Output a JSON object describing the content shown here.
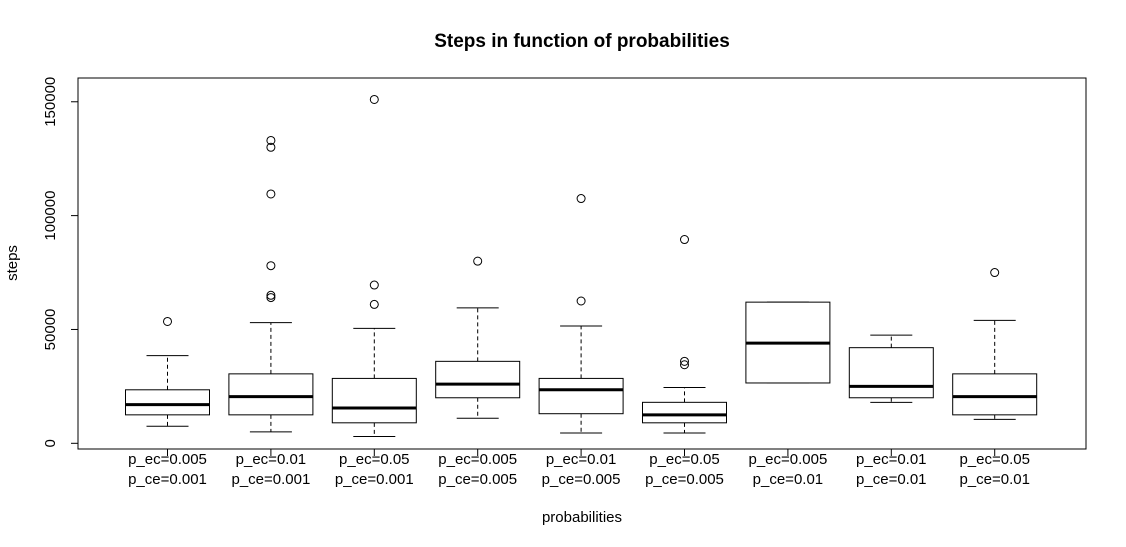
{
  "chart_data": {
    "type": "boxplot",
    "title": "Steps in function of probabilities",
    "xlabel": "probabilities",
    "ylabel": "steps",
    "ylim": [
      -2500,
      160000
    ],
    "yticks": [
      0,
      50000,
      100000,
      150000
    ],
    "ytick_labels": [
      "0",
      "50000",
      "100000",
      "150000"
    ],
    "grid": false,
    "legend": "none",
    "categories": [
      {
        "line1": "p_ec=0.005",
        "line2": "p_ce=0.001"
      },
      {
        "line1": "p_ec=0.01",
        "line2": "p_ce=0.001"
      },
      {
        "line1": "p_ec=0.05",
        "line2": "p_ce=0.001"
      },
      {
        "line1": "p_ec=0.005",
        "line2": "p_ce=0.005"
      },
      {
        "line1": "p_ec=0.01",
        "line2": "p_ce=0.005"
      },
      {
        "line1": "p_ec=0.05",
        "line2": "p_ce=0.005"
      },
      {
        "line1": "p_ec=0.005",
        "line2": "p_ce=0.01"
      },
      {
        "line1": "p_ec=0.01",
        "line2": "p_ce=0.01"
      },
      {
        "line1": "p_ec=0.05",
        "line2": "p_ce=0.01"
      }
    ],
    "boxes": [
      {
        "whisker_low": 7500,
        "q1": 12500,
        "median": 17000,
        "q3": 23500,
        "whisker_high": 38500,
        "outliers": [
          53500
        ]
      },
      {
        "whisker_low": 5000,
        "q1": 12500,
        "median": 20500,
        "q3": 30500,
        "whisker_high": 53000,
        "outliers": [
          64000,
          65000,
          78000,
          109500,
          130000,
          133000
        ]
      },
      {
        "whisker_low": 3000,
        "q1": 9000,
        "median": 15500,
        "q3": 28500,
        "whisker_high": 50500,
        "outliers": [
          61000,
          69500,
          151000
        ]
      },
      {
        "whisker_low": 11000,
        "q1": 20000,
        "median": 26000,
        "q3": 36000,
        "whisker_high": 59500,
        "outliers": [
          80000
        ]
      },
      {
        "whisker_low": 4500,
        "q1": 13000,
        "median": 23500,
        "q3": 28500,
        "whisker_high": 51500,
        "outliers": [
          62500,
          107500
        ]
      },
      {
        "whisker_low": 4500,
        "q1": 9000,
        "median": 12500,
        "q3": 18000,
        "whisker_high": 24500,
        "outliers": [
          34500,
          36000,
          89500
        ]
      },
      {
        "whisker_low": 26500,
        "q1": 26500,
        "median": 44000,
        "q3": 62000,
        "whisker_high": 62000,
        "outliers": []
      },
      {
        "whisker_low": 18000,
        "q1": 20000,
        "median": 25000,
        "q3": 42000,
        "whisker_high": 47500,
        "outliers": []
      },
      {
        "whisker_low": 10500,
        "q1": 12500,
        "median": 20500,
        "q3": 30500,
        "whisker_high": 54000,
        "outliers": [
          75000
        ]
      }
    ]
  }
}
